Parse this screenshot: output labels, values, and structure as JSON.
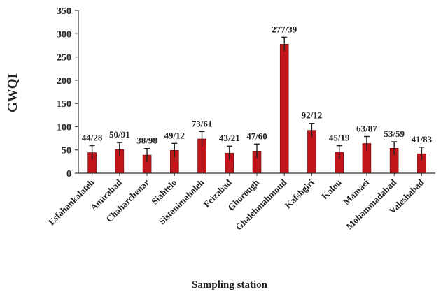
{
  "chart_data": {
    "type": "bar",
    "ylabel": "GWQI",
    "xlabel": "Sampling station",
    "ylim": [
      0,
      350
    ],
    "yticks": [
      0,
      50,
      100,
      150,
      200,
      250,
      300,
      350
    ],
    "grid": false,
    "legend": "none",
    "bar_color": "#c0161b",
    "categories": [
      "Esfahankalateh",
      "Amirabad",
      "Chaharchenar",
      "Siahtelo",
      "Sistanimahaleh",
      "Feizabad",
      "Ghorough",
      "Ghalehmahmoud",
      "Kafshgiri",
      "Kalou",
      "Mamaei",
      "Mohammadabad",
      "Valeshabad"
    ],
    "values": [
      44.28,
      50.91,
      38.98,
      49.12,
      73.61,
      43.21,
      47.6,
      277.39,
      92.12,
      45.19,
      63.87,
      53.59,
      41.83
    ],
    "errors": [
      15,
      15,
      14,
      15,
      16,
      15,
      15,
      15,
      15,
      14,
      15,
      14,
      14
    ],
    "data_labels": [
      "44/28",
      "50/91",
      "38/98",
      "49/12",
      "73/61",
      "43/21",
      "47/60",
      "277/39",
      "92/12",
      "45/19",
      "63/87",
      "53/59",
      "41/83"
    ]
  }
}
